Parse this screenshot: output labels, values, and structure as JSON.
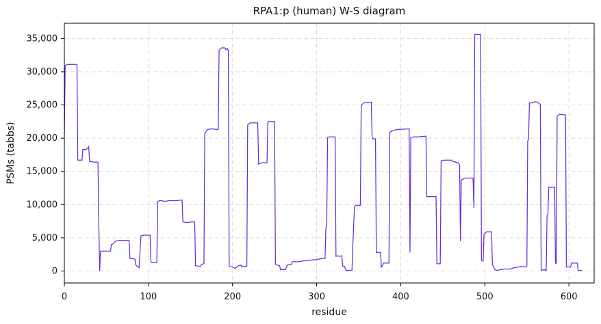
{
  "chart_data": {
    "type": "line",
    "title": "RPA1:p (human) W-S diagram",
    "xlabel": "residue",
    "ylabel": "PSMs (tabbs)",
    "xlim": [
      0,
      630
    ],
    "ylim": [
      -1800,
      37300
    ],
    "x_ticks": [
      0,
      100,
      200,
      300,
      400,
      500,
      600
    ],
    "y_ticks": [
      0,
      5000,
      10000,
      15000,
      20000,
      25000,
      30000,
      35000
    ],
    "x_tick_labels": [
      "0",
      "100",
      "200",
      "300",
      "400",
      "500",
      "600"
    ],
    "y_tick_labels": [
      "0",
      "5,000",
      "10,000",
      "15,000",
      "20,000",
      "25,000",
      "30,000",
      "35,000"
    ],
    "grid": true,
    "series": [
      {
        "color": "#6a2bd8",
        "points": [
          [
            0,
            20600
          ],
          [
            1,
            30900
          ],
          [
            3,
            31100
          ],
          [
            10,
            31100
          ],
          [
            15,
            31100
          ],
          [
            16,
            16700
          ],
          [
            18,
            16700
          ],
          [
            21,
            16700
          ],
          [
            22,
            18300
          ],
          [
            26,
            18300
          ],
          [
            27,
            18500
          ],
          [
            28,
            18500
          ],
          [
            29,
            18700
          ],
          [
            30,
            16500
          ],
          [
            35,
            16400
          ],
          [
            40,
            16400
          ],
          [
            41,
            7000
          ],
          [
            42,
            0
          ],
          [
            43,
            3000
          ],
          [
            49,
            3000
          ],
          [
            55,
            3000
          ],
          [
            56,
            4000
          ],
          [
            58,
            4100
          ],
          [
            60,
            4400
          ],
          [
            61,
            4500
          ],
          [
            65,
            4600
          ],
          [
            70,
            4600
          ],
          [
            75,
            4600
          ],
          [
            77,
            4600
          ],
          [
            78,
            1900
          ],
          [
            84,
            1800
          ],
          [
            85,
            900
          ],
          [
            89,
            500
          ],
          [
            91,
            5300
          ],
          [
            95,
            5400
          ],
          [
            102,
            5400
          ],
          [
            103,
            1300
          ],
          [
            110,
            1300
          ],
          [
            111,
            10500
          ],
          [
            114,
            10600
          ],
          [
            120,
            10500
          ],
          [
            125,
            10600
          ],
          [
            133,
            10600
          ],
          [
            140,
            10700
          ],
          [
            141,
            7400
          ],
          [
            145,
            7300
          ],
          [
            152,
            7400
          ],
          [
            155,
            7400
          ],
          [
            156,
            800
          ],
          [
            162,
            700
          ],
          [
            163,
            1000
          ],
          [
            166,
            1100
          ],
          [
            167,
            20700
          ],
          [
            170,
            21300
          ],
          [
            175,
            21400
          ],
          [
            183,
            21300
          ],
          [
            184,
            33200
          ],
          [
            187,
            33600
          ],
          [
            191,
            33600
          ],
          [
            192,
            33300
          ],
          [
            194,
            33500
          ],
          [
            195,
            33200
          ],
          [
            196,
            700
          ],
          [
            200,
            600
          ],
          [
            203,
            400
          ],
          [
            207,
            800
          ],
          [
            210,
            900
          ],
          [
            211,
            600
          ],
          [
            213,
            700
          ],
          [
            217,
            700
          ],
          [
            218,
            22000
          ],
          [
            221,
            22300
          ],
          [
            226,
            22300
          ],
          [
            230,
            22300
          ],
          [
            231,
            16100
          ],
          [
            235,
            16300
          ],
          [
            241,
            16300
          ],
          [
            242,
            22500
          ],
          [
            250,
            22500
          ],
          [
            251,
            1000
          ],
          [
            256,
            800
          ],
          [
            257,
            200
          ],
          [
            263,
            200
          ],
          [
            265,
            900
          ],
          [
            270,
            1000
          ],
          [
            271,
            1400
          ],
          [
            278,
            1400
          ],
          [
            283,
            1500
          ],
          [
            290,
            1600
          ],
          [
            296,
            1700
          ],
          [
            300,
            1700
          ],
          [
            302,
            1800
          ],
          [
            308,
            1900
          ],
          [
            310,
            1900
          ],
          [
            311,
            6500
          ],
          [
            312,
            6700
          ],
          [
            313,
            20100
          ],
          [
            315,
            20200
          ],
          [
            322,
            20200
          ],
          [
            323,
            2200
          ],
          [
            325,
            2300
          ],
          [
            327,
            2200
          ],
          [
            330,
            2300
          ],
          [
            331,
            700
          ],
          [
            333,
            700
          ],
          [
            335,
            100
          ],
          [
            342,
            100
          ],
          [
            343,
            3800
          ],
          [
            345,
            9700
          ],
          [
            347,
            9900
          ],
          [
            352,
            9900
          ],
          [
            353,
            24900
          ],
          [
            356,
            25300
          ],
          [
            360,
            25400
          ],
          [
            365,
            25400
          ],
          [
            366,
            19900
          ],
          [
            370,
            19900
          ],
          [
            371,
            2800
          ],
          [
            376,
            2800
          ],
          [
            377,
            600
          ],
          [
            380,
            1200
          ],
          [
            386,
            1200
          ],
          [
            387,
            20900
          ],
          [
            390,
            21100
          ],
          [
            395,
            21300
          ],
          [
            410,
            21400
          ],
          [
            411,
            2800
          ],
          [
            412,
            20100
          ],
          [
            415,
            20200
          ],
          [
            420,
            20200
          ],
          [
            430,
            20300
          ],
          [
            431,
            11200
          ],
          [
            436,
            11200
          ],
          [
            442,
            11200
          ],
          [
            443,
            1100
          ],
          [
            447,
            1100
          ],
          [
            448,
            16600
          ],
          [
            452,
            16700
          ],
          [
            460,
            16700
          ],
          [
            462,
            16500
          ],
          [
            468,
            16300
          ],
          [
            470,
            16000
          ],
          [
            471,
            4500
          ],
          [
            472,
            13700
          ],
          [
            474,
            13800
          ],
          [
            476,
            14000
          ],
          [
            480,
            14000
          ],
          [
            486,
            14000
          ],
          [
            487,
            9500
          ],
          [
            488,
            35600
          ],
          [
            492,
            35600
          ],
          [
            495,
            35600
          ],
          [
            496,
            1600
          ],
          [
            498,
            1500
          ],
          [
            499,
            5500
          ],
          [
            502,
            5900
          ],
          [
            506,
            5900
          ],
          [
            508,
            5900
          ],
          [
            509,
            1000
          ],
          [
            512,
            200
          ],
          [
            515,
            100
          ],
          [
            518,
            200
          ],
          [
            524,
            300
          ],
          [
            530,
            300
          ],
          [
            535,
            500
          ],
          [
            540,
            600
          ],
          [
            543,
            700
          ],
          [
            548,
            600
          ],
          [
            550,
            700
          ],
          [
            551,
            19600
          ],
          [
            552,
            19800
          ],
          [
            553,
            25300
          ],
          [
            556,
            25300
          ],
          [
            560,
            25500
          ],
          [
            563,
            25400
          ],
          [
            566,
            25100
          ],
          [
            567,
            100
          ],
          [
            571,
            200
          ],
          [
            573,
            100
          ],
          [
            574,
            8400
          ],
          [
            575,
            8500
          ],
          [
            576,
            12600
          ],
          [
            580,
            12600
          ],
          [
            583,
            12600
          ],
          [
            584,
            1200
          ],
          [
            585,
            1100
          ],
          [
            586,
            23300
          ],
          [
            589,
            23600
          ],
          [
            595,
            23500
          ],
          [
            596,
            23500
          ],
          [
            597,
            600
          ],
          [
            600,
            600
          ],
          [
            602,
            600
          ],
          [
            603,
            1200
          ],
          [
            608,
            1200
          ],
          [
            610,
            1200
          ],
          [
            611,
            100
          ],
          [
            613,
            100
          ],
          [
            616,
            100
          ]
        ]
      }
    ]
  }
}
